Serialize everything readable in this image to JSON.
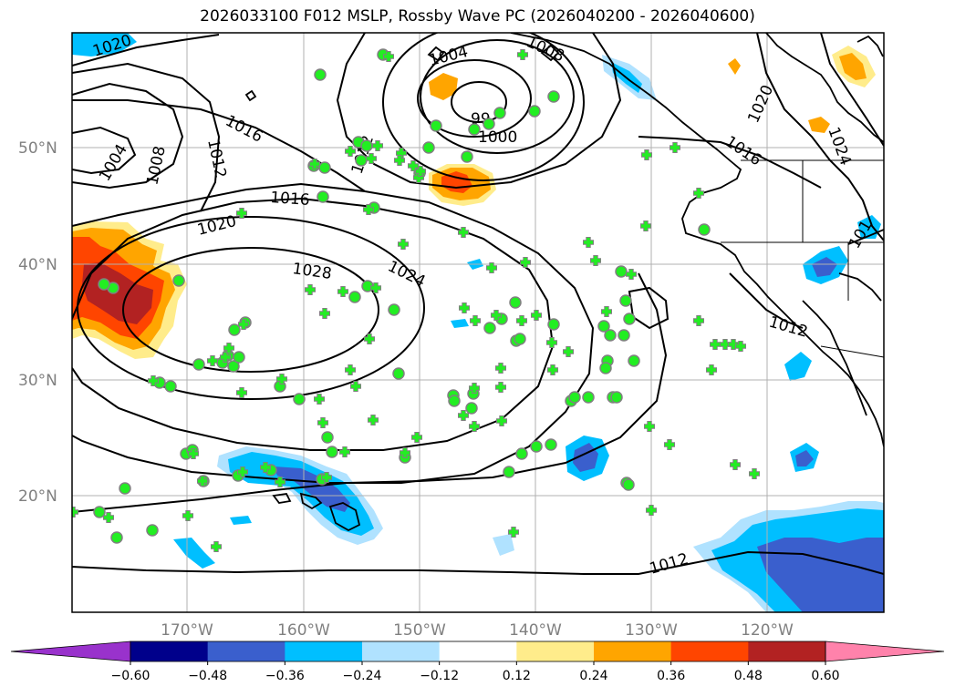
{
  "title": "2026033100 F012 MSLP, Rossby Wave PC (2026040200 - 2026040600)",
  "lat_labels": [
    "50°N",
    "40°N",
    "30°N",
    "20°N"
  ],
  "lon_labels": [
    "170°W",
    "160°W",
    "150°W",
    "140°W",
    "130°W",
    "120°W"
  ],
  "colorbar": {
    "ticks": [
      "−0.60",
      "−0.48",
      "−0.36",
      "−0.24",
      "−0.12",
      "0.12",
      "0.24",
      "0.36",
      "0.48",
      "0.60"
    ],
    "colors": [
      "#9932cc",
      "#00008b",
      "#3a5fcd",
      "#00bfff",
      "#b0e2ff",
      "#ffffff",
      "#ffec8b",
      "#ffa500",
      "#ff4500",
      "#b22222",
      "#ff82ab"
    ]
  },
  "contour_labels": [
    "1020",
    "1004",
    "1008",
    "1016",
    "1004",
    "1008",
    "1012",
    "99",
    "1000",
    "1016",
    "1020",
    "1028",
    "1024",
    "1012",
    "1020",
    "1024",
    "1016",
    "1012",
    "1012",
    "101"
  ],
  "colors": {
    "grid": "#b0b0b0",
    "contour": "#000000",
    "marker_fill": "#22ee22",
    "marker_edge": "#808080"
  }
}
